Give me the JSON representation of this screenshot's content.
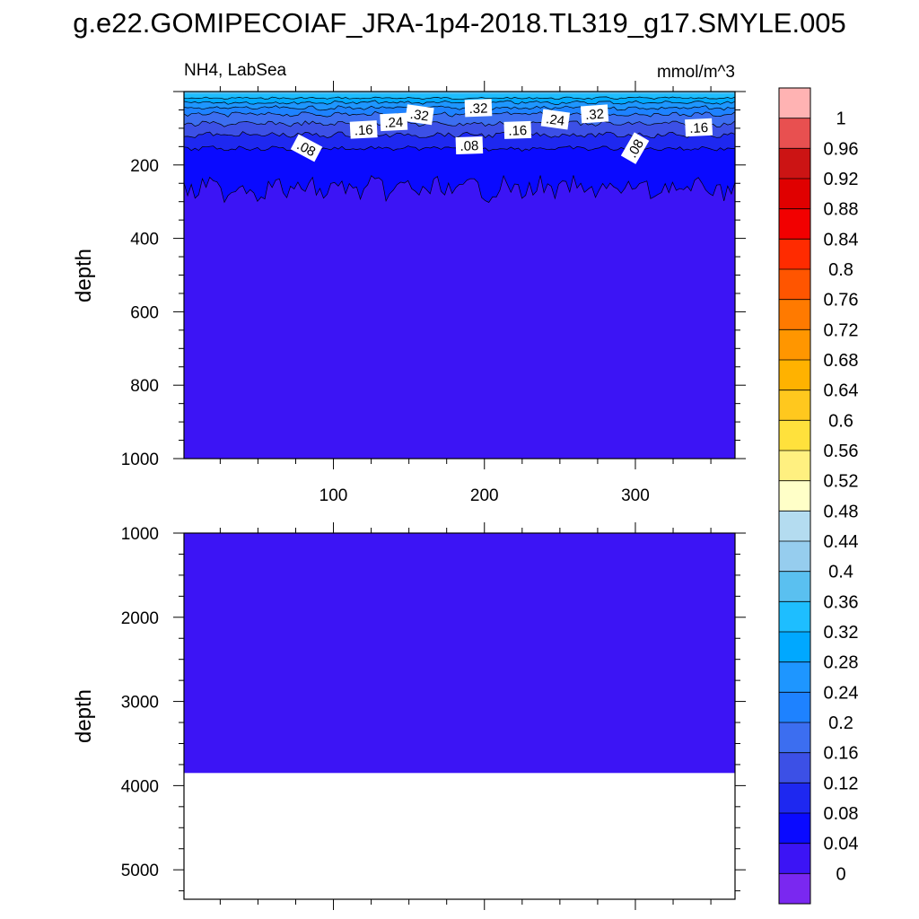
{
  "chart_data": [
    {
      "type": "contour",
      "title": "g.e22.GOMIPECOIAF_JRA-1p4-2018.TL319_g17.SMYLE.005",
      "left_label": "NH4, LabSea",
      "right_label": "mmol/m^3",
      "ylabel": "depth",
      "xlim": [
        1,
        366
      ],
      "ylim": [
        1000,
        0
      ],
      "x_ticks": [
        100,
        200,
        300
      ],
      "y_ticks": [
        200,
        400,
        600,
        800,
        1000
      ],
      "contour_levels": [
        0.08,
        0.16,
        0.24,
        0.32
      ],
      "contour_labels": [
        ".08",
        ".16",
        ".24",
        ".32",
        ".32",
        ".16",
        ".08",
        ".16",
        ".24",
        ".32",
        ".08",
        ".16"
      ],
      "field_summary": {
        "surface_layer_depth_to": 30,
        "concentration_near_surface": 0.34,
        "depth_of_008_contour": 155,
        "depth_of_004_contour_range": [
          230,
          300
        ],
        "value_below": 0.02
      }
    },
    {
      "type": "contour",
      "ylabel": "depth",
      "ylim": [
        5350,
        1000
      ],
      "y_ticks": [
        1000,
        2000,
        3000,
        4000,
        5000
      ],
      "fill_to_depth": 3850,
      "value": 0.02,
      "below_fill": "no data"
    }
  ],
  "colorbar": {
    "labels": [
      "1",
      "0.96",
      "0.92",
      "0.88",
      "0.84",
      "0.8",
      "0.76",
      "0.72",
      "0.68",
      "0.64",
      "0.6",
      "0.56",
      "0.52",
      "0.48",
      "0.44",
      "0.4",
      "0.36",
      "0.32",
      "0.28",
      "0.24",
      "0.2",
      "0.16",
      "0.12",
      "0.08",
      "0.04",
      "0"
    ],
    "colors_top_to_bottom": [
      "#ffb3b3",
      "#e85050",
      "#cc1414",
      "#e00000",
      "#f20000",
      "#ff2b00",
      "#ff5500",
      "#ff7a00",
      "#ff9600",
      "#ffb200",
      "#ffc81e",
      "#ffe13c",
      "#fff080",
      "#ffffc8",
      "#b4dcf0",
      "#96cdee",
      "#5ac0f0",
      "#1ebeff",
      "#00a8ff",
      "#1e96ff",
      "#1e82ff",
      "#3c6ef0",
      "#3c50e6",
      "#1e28f0",
      "#0a0aff",
      "#3c14f5",
      "#7a28f0"
    ]
  }
}
